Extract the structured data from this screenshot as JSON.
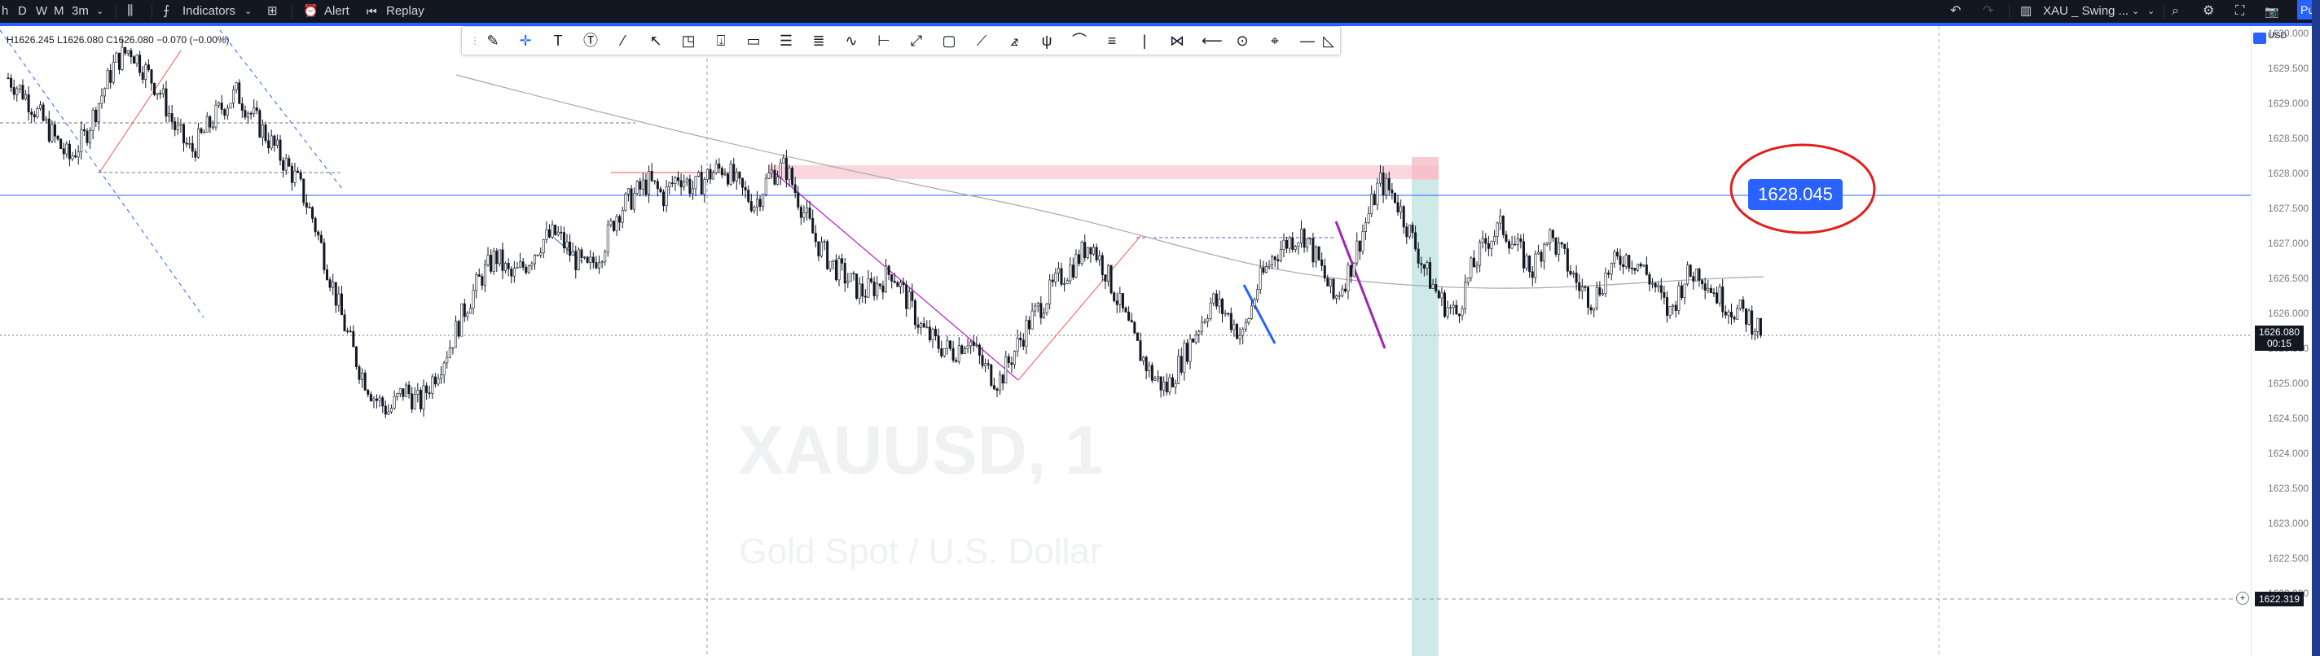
{
  "toolbar": {
    "timeframes": [
      "h",
      "D",
      "W",
      "M",
      "3m"
    ],
    "indicators_label": "Indicators",
    "alert_label": "Alert",
    "replay_label": "Replay",
    "layout_name": "XAU _ Swing ...",
    "publish_label": "Pu"
  },
  "legend": {
    "ohlc": "H1626.245 L1626.080 C1626.080 −0.070 (−0.00%)"
  },
  "watermark": {
    "symbol": "XAUUSD, 1",
    "description": "Gold Spot / U.S. Dollar"
  },
  "price_scale": {
    "currency": "USD",
    "ticks": [
      "1630.000",
      "1629.500",
      "1629.000",
      "1628.500",
      "1628.000",
      "1627.500",
      "1627.000",
      "1626.500",
      "1626.000",
      "1625.500",
      "1625.000",
      "1624.500",
      "1624.000",
      "1623.500",
      "1623.000",
      "1622.500",
      "1622.000"
    ],
    "current_price": "1626.080",
    "countdown": "00:15",
    "crosshair_price": "1622.319"
  },
  "annotation": {
    "label": "1628.045"
  },
  "colors": {
    "up_down_candle": "#131722",
    "sell_zone": "#f7c9d3",
    "buy_zone": "#b2dfdb",
    "hline": "#2962ff",
    "ma": "#9e9e9e",
    "accent": "#2962ff",
    "circle": "#e0201b"
  },
  "chart_data": {
    "type": "candlestick",
    "symbol": "XAUUSD",
    "interval": "1",
    "ylim": [
      1621.8,
      1630.3
    ],
    "close_path": [
      1629.6,
      1629.4,
      1629.1,
      1628.8,
      1628.5,
      1628.8,
      1629.3,
      1629.8,
      1630.0,
      1629.7,
      1629.4,
      1628.9,
      1628.6,
      1628.9,
      1629.2,
      1629.4,
      1629.1,
      1628.8,
      1628.5,
      1628.2,
      1627.7,
      1627.0,
      1626.3,
      1625.7,
      1625.3,
      1625.1,
      1625.4,
      1625.2,
      1625.6,
      1626.0,
      1626.5,
      1626.9,
      1627.2,
      1626.9,
      1627.1,
      1627.4,
      1627.5,
      1627.2,
      1627.0,
      1627.3,
      1627.8,
      1628.0,
      1628.2,
      1628.0,
      1628.3,
      1628.1,
      1628.3,
      1628.4,
      1628.1,
      1627.9,
      1628.3,
      1628.4,
      1627.9,
      1627.4,
      1627.1,
      1626.9,
      1626.7,
      1626.8,
      1627.0,
      1626.6,
      1626.2,
      1626.0,
      1625.9,
      1626.1,
      1625.7,
      1625.5,
      1625.9,
      1626.3,
      1626.6,
      1626.9,
      1627.1,
      1627.4,
      1627.0,
      1626.5,
      1626.0,
      1625.6,
      1625.4,
      1625.8,
      1626.2,
      1626.6,
      1626.4,
      1626.1,
      1626.8,
      1627.2,
      1627.4,
      1627.5,
      1627.1,
      1626.6,
      1627.0,
      1627.6,
      1628.2,
      1628.0,
      1627.5,
      1627.0,
      1626.6,
      1626.4,
      1627.0,
      1627.4,
      1627.6,
      1627.3,
      1627.0,
      1627.5,
      1627.2,
      1626.8,
      1626.6,
      1627.0,
      1627.2,
      1627.1,
      1626.8,
      1626.4,
      1626.9,
      1627.0,
      1626.7,
      1626.5,
      1626.4,
      1626.2
    ]
  }
}
